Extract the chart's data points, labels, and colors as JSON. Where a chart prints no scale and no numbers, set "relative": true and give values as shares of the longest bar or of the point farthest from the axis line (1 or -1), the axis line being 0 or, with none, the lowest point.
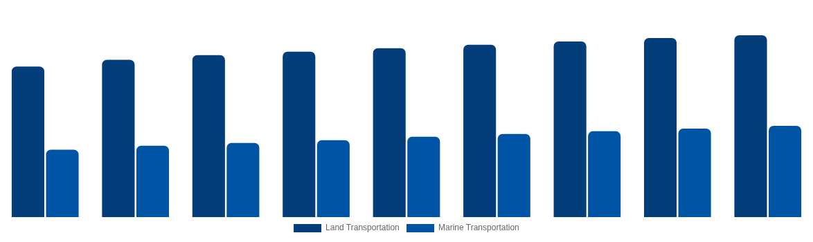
{
  "chart_data": {
    "type": "bar",
    "relative": true,
    "categories": [
      null,
      null,
      null,
      null,
      null,
      null,
      null,
      null,
      null
    ],
    "series": [
      {
        "name": "Land Transportation",
        "color": "#033d7a",
        "values": [
          0.828,
          0.865,
          0.891,
          0.91,
          0.929,
          0.948,
          0.966,
          0.985,
          1
        ]
      },
      {
        "name": "Marine Transportation",
        "color": "#0054a6",
        "values": [
          0.371,
          0.393,
          0.408,
          0.423,
          0.442,
          0.457,
          0.472,
          0.487,
          0.502
        ]
      }
    ],
    "legend": "bottom",
    "grid": false
  }
}
